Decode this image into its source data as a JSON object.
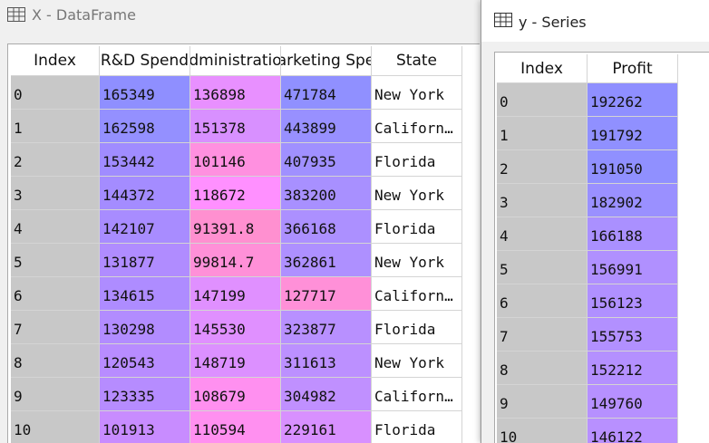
{
  "left_window": {
    "title": "X - DataFrame",
    "table": {
      "columns": [
        "Index",
        "R&D Spend",
        "dministratio",
        "arketing Spe",
        "State"
      ],
      "rows": [
        [
          0,
          165349,
          136898,
          471784,
          "New York"
        ],
        [
          1,
          162598,
          151378,
          443899,
          "Californ…"
        ],
        [
          2,
          153442,
          101146,
          407935,
          "Florida"
        ],
        [
          3,
          144372,
          118672,
          383200,
          "New York"
        ],
        [
          4,
          142107,
          91391.8,
          366168,
          "Florida"
        ],
        [
          5,
          131877,
          99814.7,
          362861,
          "New York"
        ],
        [
          6,
          134615,
          147199,
          127717,
          "Californ…"
        ],
        [
          7,
          130298,
          145530,
          323877,
          "Florida"
        ],
        [
          8,
          120543,
          148719,
          311613,
          "New York"
        ],
        [
          9,
          123335,
          108679,
          304982,
          "Californ…"
        ],
        [
          10,
          101913,
          110594,
          229161,
          "Florida"
        ]
      ],
      "colors": [
        [
          "#8f8fff",
          "#e890ff",
          "#9090ff"
        ],
        [
          "#9490ff",
          "#d890ff",
          "#9890ff"
        ],
        [
          "#a08cff",
          "#ff90e0",
          "#a090ff"
        ],
        [
          "#a48cff",
          "#ff90ff",
          "#a890ff"
        ],
        [
          "#a88cff",
          "#ff90d0",
          "#ac90ff"
        ],
        [
          "#b08cff",
          "#ff90d8",
          "#ae90ff"
        ],
        [
          "#ae8cff",
          "#e090ff",
          "#ff90d8"
        ],
        [
          "#b28cff",
          "#e090ff",
          "#b890ff"
        ],
        [
          "#b88cff",
          "#dc90ff",
          "#bc90ff"
        ],
        [
          "#b68cff",
          "#ff90f0",
          "#c090ff"
        ],
        [
          "#c88cff",
          "#ff90f0",
          "#d890ff"
        ]
      ]
    }
  },
  "right_window": {
    "title": "y - Series",
    "table": {
      "columns": [
        "Index",
        "Profit"
      ],
      "rows": [
        [
          0,
          192262
        ],
        [
          1,
          191792
        ],
        [
          2,
          191050
        ],
        [
          3,
          182902
        ],
        [
          4,
          166188
        ],
        [
          5,
          156991
        ],
        [
          6,
          156123
        ],
        [
          7,
          155753
        ],
        [
          8,
          152212
        ],
        [
          9,
          149760
        ],
        [
          10,
          146122
        ]
      ],
      "colors": [
        [
          "#8f8fff"
        ],
        [
          "#9090ff"
        ],
        [
          "#9090ff"
        ],
        [
          "#9a90ff"
        ],
        [
          "#aa90ff"
        ],
        [
          "#b090ff"
        ],
        [
          "#b090ff"
        ],
        [
          "#b290ff"
        ],
        [
          "#b490ff"
        ],
        [
          "#b690ff"
        ],
        [
          "#b890ff"
        ]
      ]
    }
  }
}
